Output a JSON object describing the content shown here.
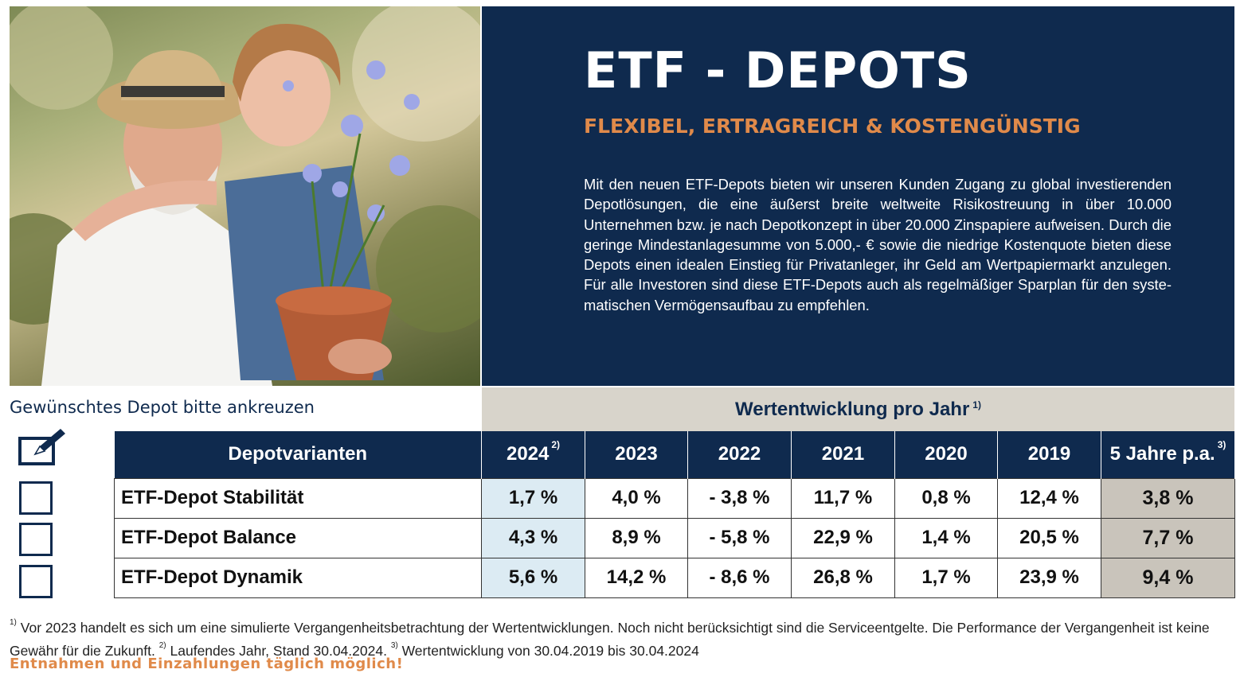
{
  "header": {
    "title": "ETF - DEPOTS",
    "subtitle": "FLEXIBEL, ERTRAGREICH & KOSTENGÜNSTIG",
    "intro": "Mit den neuen ETF-Depots bieten wir unseren Kunden Zugang zu global investierenden Depotlösungen, die eine äußerst breite weltweite Risiko­streuung in über 10.000 Unternehmen bzw. je nach Depotkonzept in über 20.000 Zinspapiere aufweisen. Durch die geringe Mindestanlagesumme von 5.000,- € sowie die niedrige Kostenquote bieten diese Depots einen idealen Einstieg für Privatanleger, ihr Geld am Wertpapiermarkt anzulegen. Für alle In­vestoren sind diese ETF-Depots auch als regelmäßiger Sparplan für den syste­matischen Vermögensaufbau zu empfehlen."
  },
  "selection": {
    "hint": "Gewünschtes Depot bitte ankreuzen",
    "icon": "checkbox-pen-icon"
  },
  "performance": {
    "banner": "Wertentwicklung pro Jahr",
    "banner_note": "1)"
  },
  "table": {
    "columns": [
      {
        "label": "Depotvarianten",
        "note": ""
      },
      {
        "label": "2024",
        "note": "2)"
      },
      {
        "label": "2023",
        "note": ""
      },
      {
        "label": "2022",
        "note": ""
      },
      {
        "label": "2021",
        "note": ""
      },
      {
        "label": "2020",
        "note": ""
      },
      {
        "label": "2019",
        "note": ""
      },
      {
        "label": "5 Jahre p.a.",
        "note": "3)"
      }
    ],
    "rows": [
      {
        "name": "ETF-Depot Stabilität",
        "values": [
          "1,7 %",
          "4,0 %",
          "- 3,8 %",
          "11,7 %",
          "0,8 %",
          "12,4 %",
          "3,8 %"
        ]
      },
      {
        "name": "ETF-Depot Balance",
        "values": [
          "4,3 %",
          "8,9 %",
          "- 5,8 %",
          "22,9 %",
          "1,4 %",
          "20,5 %",
          "7,7 %"
        ]
      },
      {
        "name": "ETF-Depot Dynamik",
        "values": [
          "5,6 %",
          "14,2 %",
          "- 8,6 %",
          "26,8 %",
          "1,7 %",
          "23,9 %",
          "9,4 %"
        ]
      }
    ]
  },
  "footnotes": {
    "n1_mark": "1)",
    "n1": " Vor 2023 handelt es sich um eine simulierte Vergangenheitsbetrachtung der Wertentwicklungen. Noch nicht berücksichtigt sind die Serviceentgelte. Die Performance der Vergangenheit ist keine Gewähr für die Zukunft. ",
    "n2_mark": "2)",
    "n2": " Laufendes Jahr, Stand 30.04.2024. ",
    "n3_mark": "3)",
    "n3": " Wertentwicklung von 30.04.2019 bis 30.04.2024",
    "cta": "Entnahmen und Einzahlungen täglich möglich!"
  },
  "colors": {
    "navy": "#0f2a4e",
    "orange": "#e08a4a",
    "banner_grey": "#d8d4cb",
    "highlight_blue": "#dcebf3",
    "avg_grey": "#c9c4bb"
  }
}
